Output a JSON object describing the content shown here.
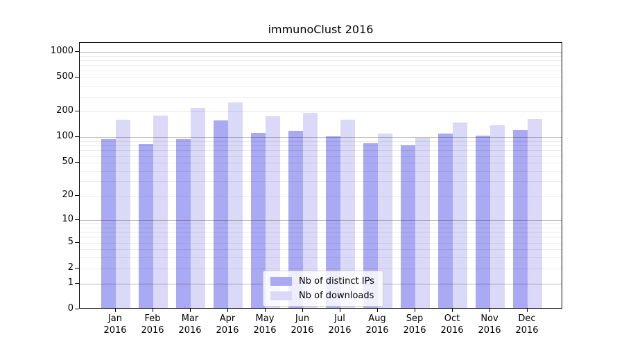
{
  "chart_data": {
    "type": "bar",
    "title": "immunoClust 2016",
    "categories": [
      "Jan",
      "Feb",
      "Mar",
      "Apr",
      "May",
      "Jun",
      "Jul",
      "Aug",
      "Sep",
      "Oct",
      "Nov",
      "Dec"
    ],
    "x_tick_year": "2016",
    "series": [
      {
        "name": "Nb of distinct IPs",
        "color": "#a9a9f4",
        "values": [
          92,
          80,
          92,
          152,
          109,
          114,
          99,
          82,
          77,
          106,
          101,
          117
        ]
      },
      {
        "name": "Nb of downloads",
        "color": "#dadaf8",
        "values": [
          154,
          174,
          215,
          246,
          170,
          188,
          156,
          106,
          96,
          143,
          133,
          158
        ]
      }
    ],
    "yscale": "log10(1+v)",
    "y_ticks": [
      0,
      1,
      2,
      5,
      10,
      20,
      50,
      100,
      200,
      500,
      1000
    ],
    "y_major_gridlines": [
      1,
      10,
      100,
      1000
    ],
    "ylim": [
      0,
      1272
    ],
    "grid": true,
    "legend_position": "lower-center"
  }
}
